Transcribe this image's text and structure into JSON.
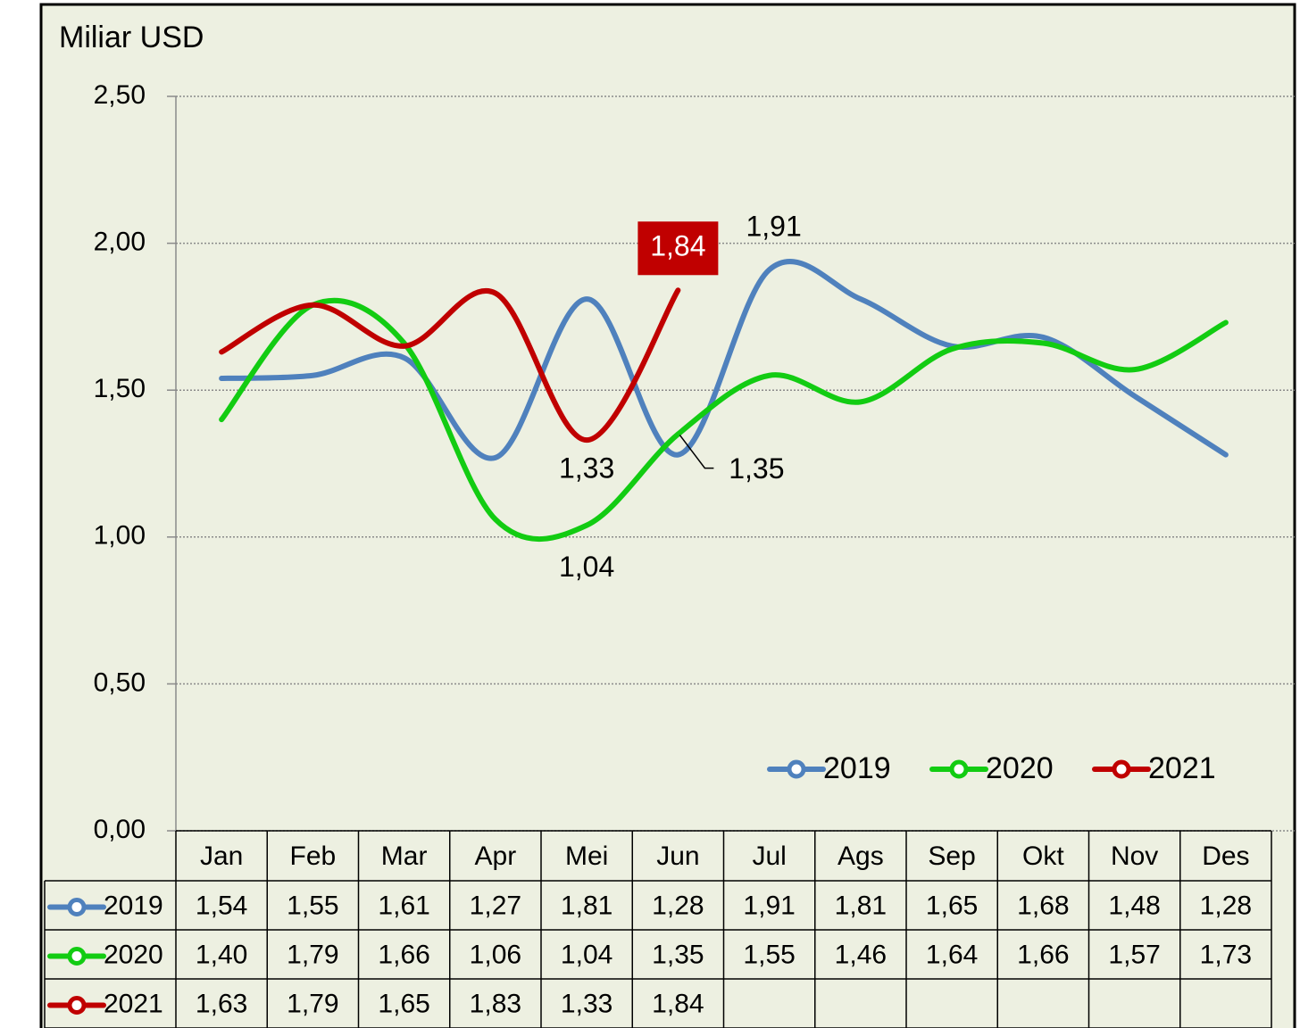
{
  "chart_data": {
    "type": "line",
    "y_axis_title": "Miliar USD",
    "categories": [
      "Jan",
      "Feb",
      "Mar",
      "Apr",
      "Mei",
      "Jun",
      "Jul",
      "Ags",
      "Sep",
      "Okt",
      "Nov",
      "Des"
    ],
    "series": [
      {
        "name": "2019",
        "color": "#4f81bd",
        "values": [
          1.54,
          1.55,
          1.61,
          1.27,
          1.81,
          1.28,
          1.91,
          1.81,
          1.65,
          1.68,
          1.48,
          1.28
        ],
        "value_labels": [
          "1,54",
          "1,55",
          "1,61",
          "1,27",
          "1,81",
          "1,28",
          "1,91",
          "1,81",
          "1,65",
          "1,68",
          "1,48",
          "1,28"
        ]
      },
      {
        "name": "2020",
        "color": "#12cc12",
        "values": [
          1.4,
          1.79,
          1.66,
          1.06,
          1.04,
          1.35,
          1.55,
          1.46,
          1.64,
          1.66,
          1.57,
          1.73
        ],
        "value_labels": [
          "1,40",
          "1,79",
          "1,66",
          "1,06",
          "1,04",
          "1,35",
          "1,55",
          "1,46",
          "1,64",
          "1,66",
          "1,57",
          "1,73"
        ]
      },
      {
        "name": "2021",
        "color": "#c00000",
        "values": [
          1.63,
          1.79,
          1.65,
          1.83,
          1.33,
          1.84,
          null,
          null,
          null,
          null,
          null,
          null
        ],
        "value_labels": [
          "1,63",
          "1,79",
          "1,65",
          "1,83",
          "1,33",
          "1,84",
          null,
          null,
          null,
          null,
          null,
          null
        ]
      }
    ],
    "ylim": [
      0,
      2.5
    ],
    "yticks": [
      {
        "value": 0,
        "label": "0,00"
      },
      {
        "value": 0.5,
        "label": "0,50"
      },
      {
        "value": 1,
        "label": "1,00"
      },
      {
        "value": 1.5,
        "label": "1,50"
      },
      {
        "value": 2,
        "label": "2,00"
      },
      {
        "value": 2.5,
        "label": "2,50"
      }
    ],
    "grid": true,
    "legend": "lower right",
    "smooth": true,
    "data_table": true
  }
}
